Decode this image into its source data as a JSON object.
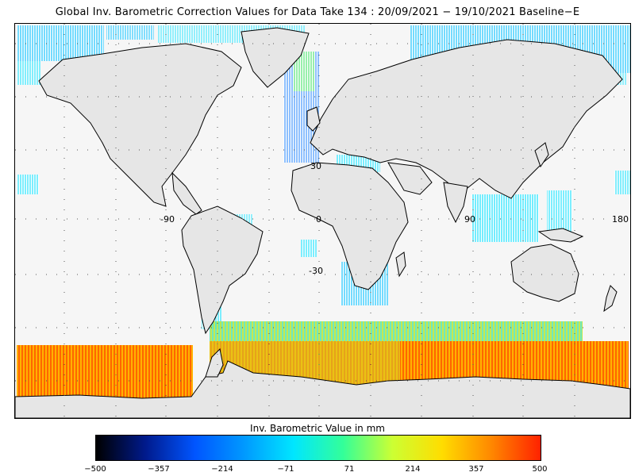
{
  "title": "Global Inv. Barometric Correction Values for Data Take 134 : 20/09/2021 − 19/10/2021 Baseline−E",
  "map": {
    "lat_labels": [
      "30",
      "-30"
    ],
    "lon_labels": [
      "-90",
      "0",
      "90",
      "180"
    ],
    "grid": "dotted",
    "land_color": "#e6e6e6",
    "coast_color": "#000000"
  },
  "colorbar": {
    "title": "Inv. Barometric Value in mm",
    "ticks": [
      "−500",
      "−357",
      "−214",
      "−71",
      "71",
      "214",
      "357",
      "500"
    ],
    "range": [
      -500,
      500
    ],
    "colors": [
      "#000000",
      "#001a8c",
      "#0055ff",
      "#0099ff",
      "#00e6ff",
      "#33ff99",
      "#ccff33",
      "#ffdd00",
      "#ff8800",
      "#ff2200"
    ]
  }
}
